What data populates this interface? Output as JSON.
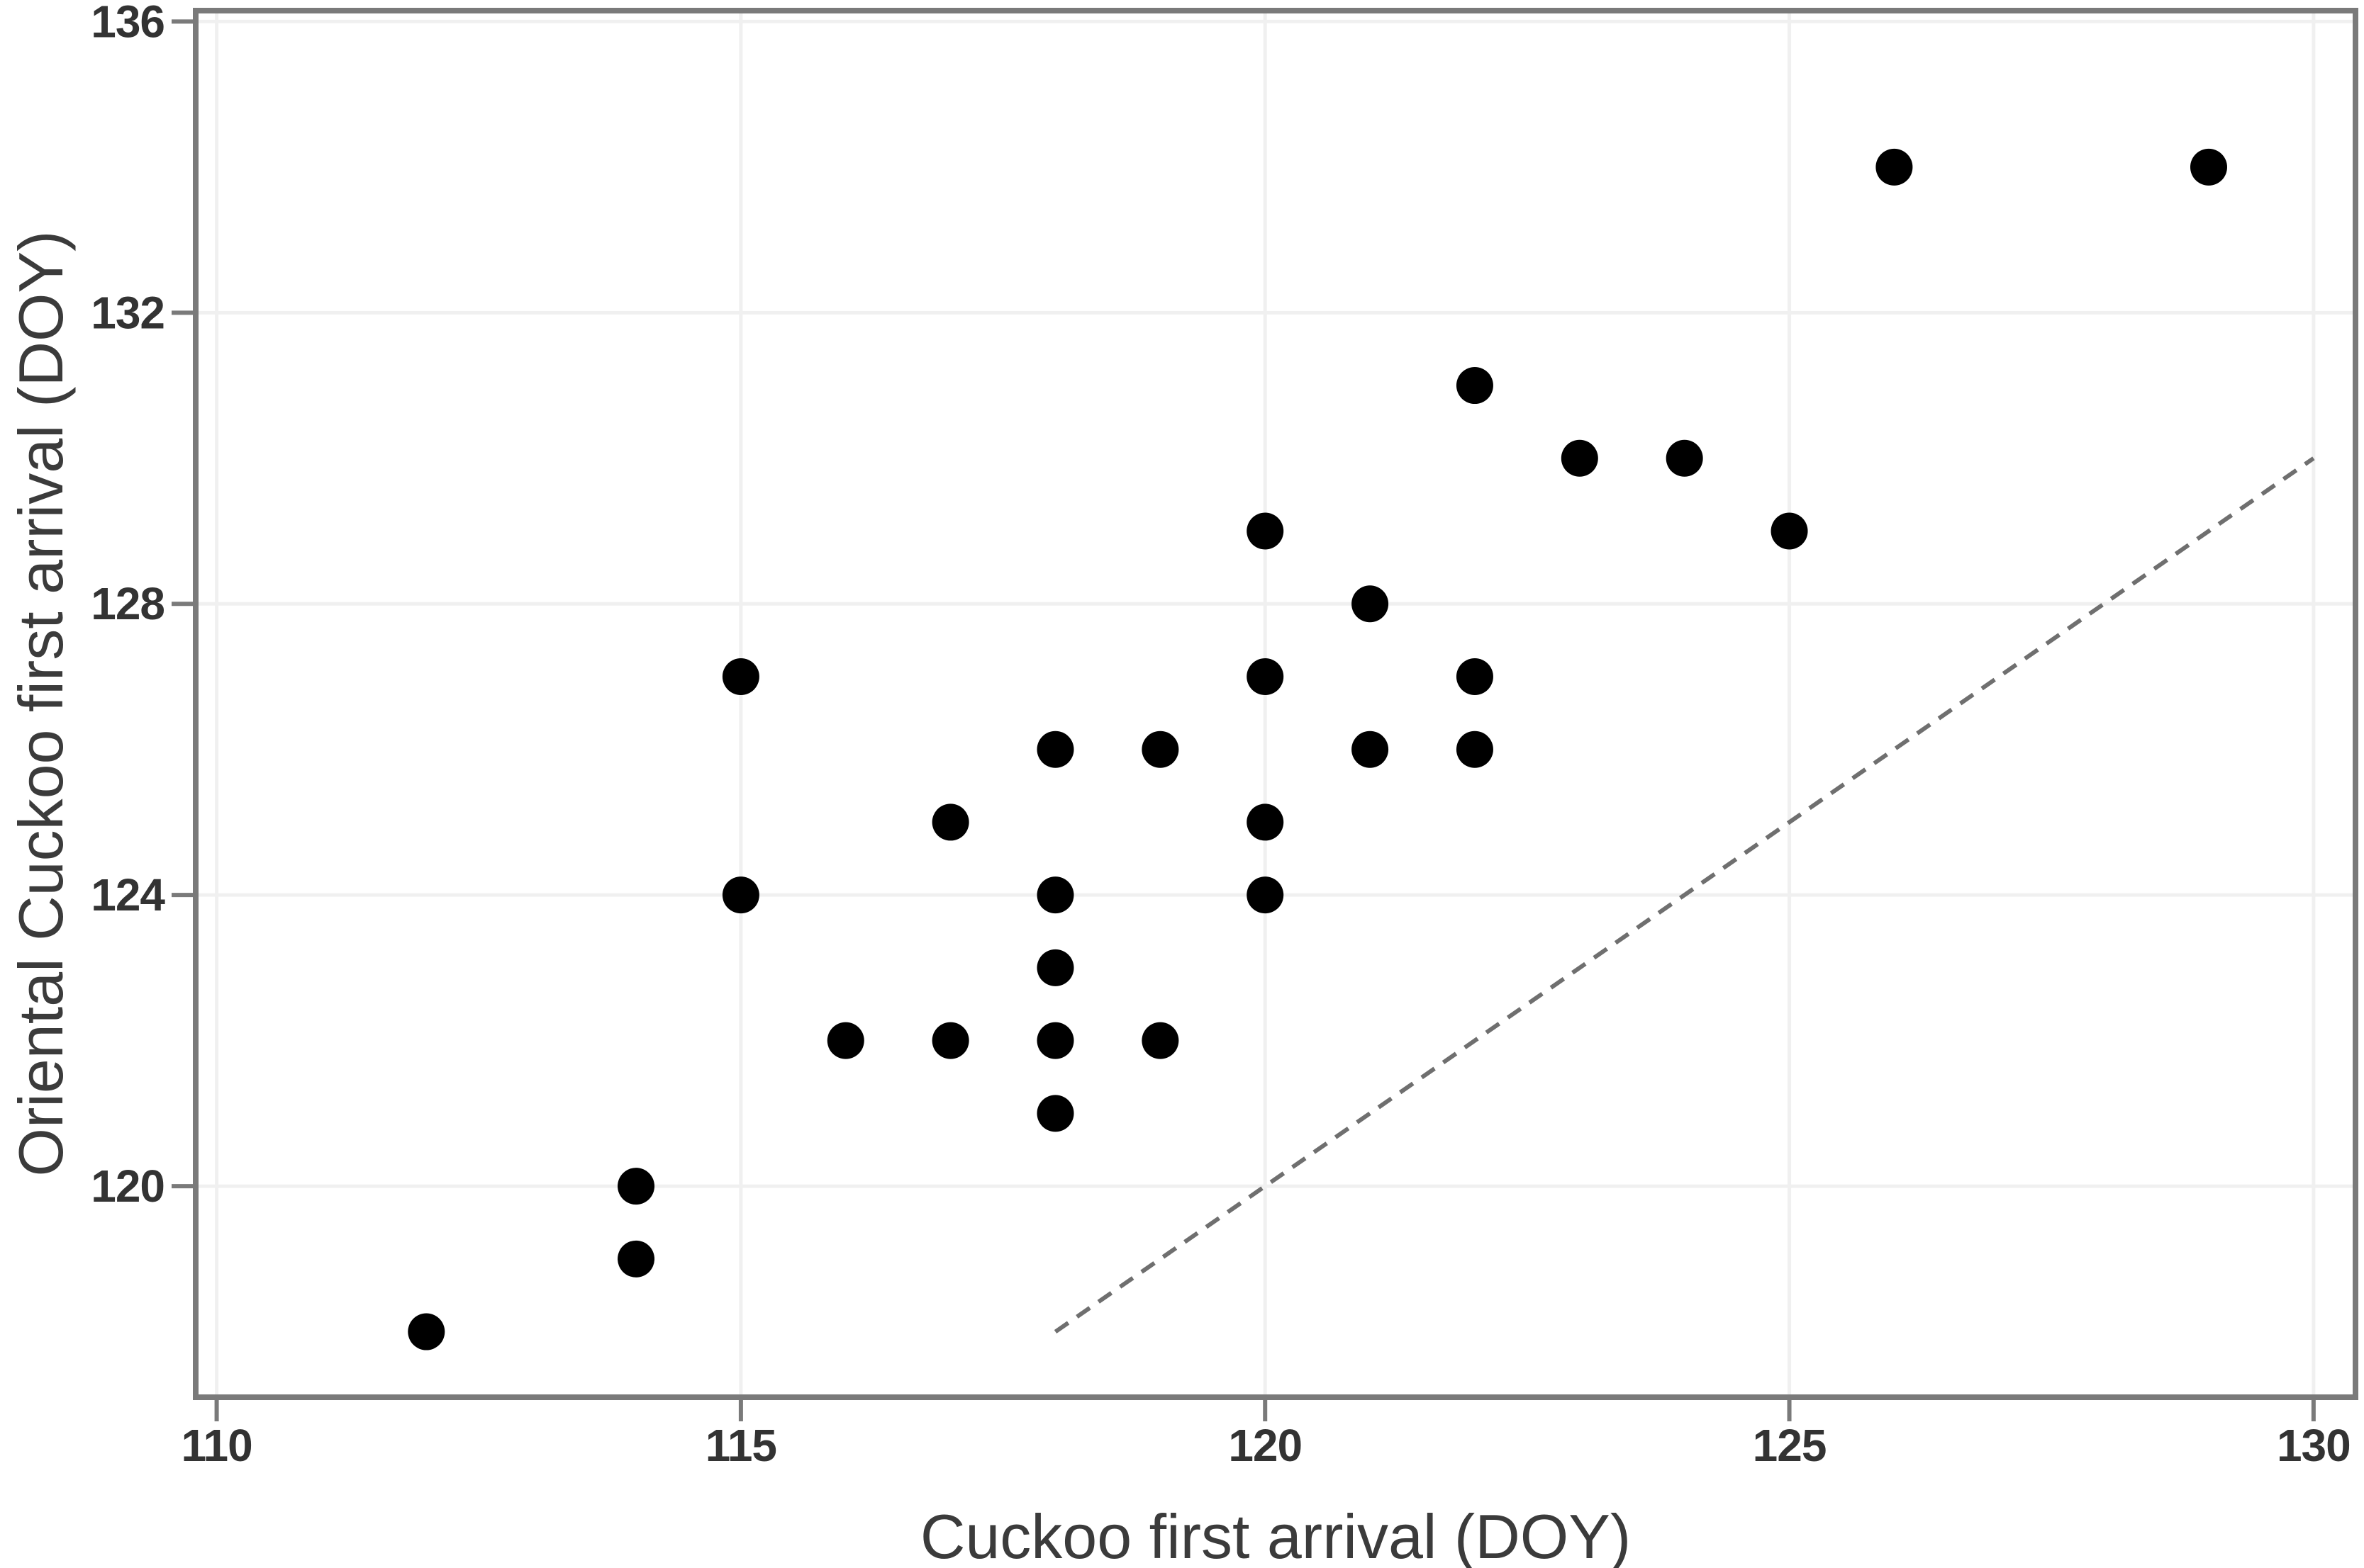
{
  "chart_data": {
    "type": "scatter",
    "title": "",
    "xlabel": "Cuckoo first arrival (DOY)",
    "ylabel": "Oriental Cuckoo first arrival (DOY)",
    "xlim": [
      109.8,
      130.4
    ],
    "ylim": [
      117.1,
      136.15
    ],
    "x_ticks": [
      110,
      115,
      120,
      125,
      130
    ],
    "y_ticks": [
      120,
      124,
      128,
      132,
      136
    ],
    "grid": true,
    "legend": "none",
    "points": [
      [
        112,
        118
      ],
      [
        114,
        119
      ],
      [
        114,
        120
      ],
      [
        115,
        124
      ],
      [
        115,
        127
      ],
      [
        116,
        122
      ],
      [
        117,
        122
      ],
      [
        117,
        125
      ],
      [
        118,
        121
      ],
      [
        118,
        122
      ],
      [
        118,
        123
      ],
      [
        118,
        124
      ],
      [
        118,
        126
      ],
      [
        119,
        122
      ],
      [
        119,
        126
      ],
      [
        120,
        124
      ],
      [
        120,
        125
      ],
      [
        120,
        127
      ],
      [
        120,
        129
      ],
      [
        121,
        126
      ],
      [
        121,
        128
      ],
      [
        122,
        126
      ],
      [
        122,
        127
      ],
      [
        122,
        131
      ],
      [
        123,
        130
      ],
      [
        124,
        130
      ],
      [
        125,
        129
      ],
      [
        126,
        134
      ],
      [
        129,
        134
      ]
    ],
    "identity_line": {
      "x_start": 118,
      "y_start": 118,
      "x_end": 130,
      "y_end": 130,
      "style": "dashed"
    },
    "marker": {
      "shape": "circle",
      "radius_px": 26,
      "color": "#000000"
    },
    "colors": {
      "point": "#000000",
      "dashed_line": "#6f6f6f",
      "gridline": "#f0f0f0",
      "axis_border": "#7a7a7a",
      "tick_mark": "#7a7a7a",
      "tick_label": "#333333",
      "axis_title": "#3b3b3b",
      "background": "#ffffff"
    }
  }
}
